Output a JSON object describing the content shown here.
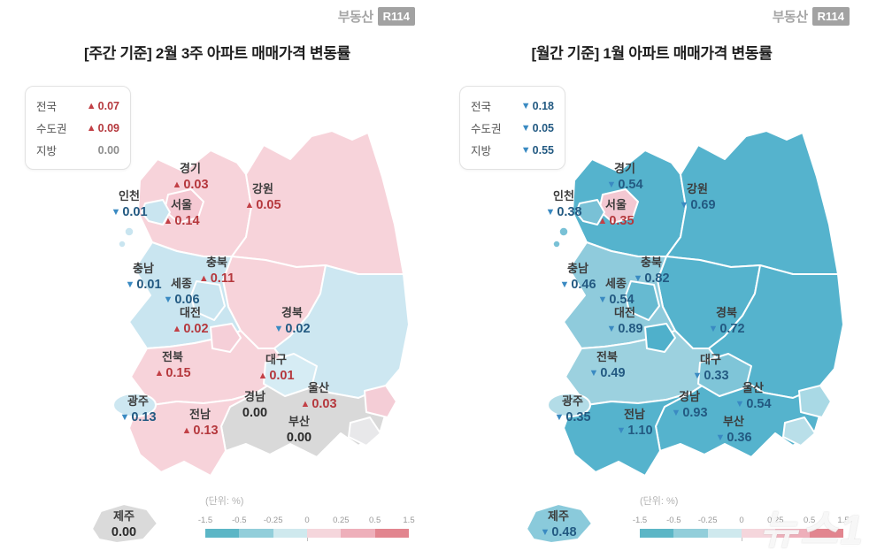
{
  "watermark": "뉴스1",
  "logo": {
    "text": "부동산",
    "badge": "R114"
  },
  "value_colors": {
    "up": "#b5383d",
    "up_arrow": "#c24046",
    "down": "#235a82",
    "down_arrow": "#3a8ac2",
    "neutral": "#2b2b2b",
    "muted": "#8d8d8d"
  },
  "legend": {
    "unit": "(단위: %)",
    "ticks": [
      "-1.5",
      "-0.5",
      "-0.25",
      "0",
      "0.25",
      "0.5",
      "1.5"
    ],
    "colors": [
      "#5cb6c6",
      "#92ceda",
      "#cfe9ee",
      "#f5d6dc",
      "#eeafba",
      "#e2858f"
    ]
  },
  "panels": [
    {
      "title": "[주간 기준] 2월 3주 아파트 매매가격 변동률",
      "summary": [
        {
          "label": "전국",
          "arrow": "up",
          "value": "0.07"
        },
        {
          "label": "수도권",
          "arrow": "up",
          "value": "0.09"
        },
        {
          "label": "지방",
          "arrow": "none",
          "value": "0.00"
        }
      ],
      "regions": [
        {
          "id": "gyeonggi",
          "name": "경기",
          "arrow": "up",
          "value": "0.03",
          "fill": "#f7d3da"
        },
        {
          "id": "gangwon",
          "name": "강원",
          "arrow": "up",
          "value": "0.05",
          "fill": "#f7d3da"
        },
        {
          "id": "chungbuk",
          "name": "충북",
          "arrow": "up",
          "value": "0.11",
          "fill": "#f7d3da"
        },
        {
          "id": "chungnam",
          "name": "충남",
          "arrow": "down",
          "value": "0.01",
          "fill": "#c9e5f0"
        },
        {
          "id": "gyeongbuk",
          "name": "경북",
          "arrow": "down",
          "value": "0.02",
          "fill": "#cde7f1"
        },
        {
          "id": "jeonbuk",
          "name": "전북",
          "arrow": "up",
          "value": "0.15",
          "fill": "#f7d3da"
        },
        {
          "id": "gyeongnam",
          "name": "경남",
          "arrow": "none",
          "value": "0.00",
          "fill": "#d9d9d9"
        },
        {
          "id": "jeonnam",
          "name": "전남",
          "arrow": "up",
          "value": "0.13",
          "fill": "#f7d3da"
        },
        {
          "id": "seoul",
          "name": "서울",
          "arrow": "up",
          "value": "0.14",
          "fill": "#f5c9d3"
        },
        {
          "id": "incheon",
          "name": "인천",
          "arrow": "down",
          "value": "0.01",
          "fill": "#c9e5f0"
        },
        {
          "id": "sejong",
          "name": "세종",
          "arrow": "down",
          "value": "0.06",
          "fill": "#c9e5f0"
        },
        {
          "id": "daejeon",
          "name": "대전",
          "arrow": "up",
          "value": "0.02",
          "fill": "#f5cfd8"
        },
        {
          "id": "daegu",
          "name": "대구",
          "arrow": "up",
          "value": "0.01",
          "fill": "#d6ecf4"
        },
        {
          "id": "ulsan",
          "name": "울산",
          "arrow": "up",
          "value": "0.03",
          "fill": "#f4cdd6"
        },
        {
          "id": "busan",
          "name": "부산",
          "arrow": "none",
          "value": "0.00",
          "fill": "#e8e8ea"
        },
        {
          "id": "gwangju",
          "name": "광주",
          "arrow": "down",
          "value": "0.13",
          "fill": "#cde7f1"
        },
        {
          "id": "jeju",
          "name": "제주",
          "arrow": "none",
          "value": "0.00",
          "fill": "#dadada"
        }
      ]
    },
    {
      "title": "[월간 기준] 1월 아파트 매매가격 변동률",
      "summary": [
        {
          "label": "전국",
          "arrow": "down",
          "value": "0.18"
        },
        {
          "label": "수도권",
          "arrow": "down",
          "value": "0.05"
        },
        {
          "label": "지방",
          "arrow": "down",
          "value": "0.55"
        }
      ],
      "regions": [
        {
          "id": "gyeonggi",
          "name": "경기",
          "arrow": "down",
          "value": "0.54",
          "fill": "#55b3cd"
        },
        {
          "id": "gangwon",
          "name": "강원",
          "arrow": "down",
          "value": "0.69",
          "fill": "#55b3cd"
        },
        {
          "id": "chungbuk",
          "name": "충북",
          "arrow": "down",
          "value": "0.82",
          "fill": "#55b3cd"
        },
        {
          "id": "chungnam",
          "name": "충남",
          "arrow": "down",
          "value": "0.46",
          "fill": "#8fcbdc"
        },
        {
          "id": "gyeongbuk",
          "name": "경북",
          "arrow": "down",
          "value": "0.72",
          "fill": "#55b3cd"
        },
        {
          "id": "jeonbuk",
          "name": "전북",
          "arrow": "down",
          "value": "0.49",
          "fill": "#9cd1df"
        },
        {
          "id": "gyeongnam",
          "name": "경남",
          "arrow": "down",
          "value": "0.93",
          "fill": "#55b3cd"
        },
        {
          "id": "jeonnam",
          "name": "전남",
          "arrow": "down",
          "value": "1.10",
          "fill": "#55b3cd"
        },
        {
          "id": "seoul",
          "name": "서울",
          "arrow": "up",
          "value": "0.35",
          "fill": "#f3c8d2"
        },
        {
          "id": "incheon",
          "name": "인천",
          "arrow": "down",
          "value": "0.38",
          "fill": "#79c1d6"
        },
        {
          "id": "sejong",
          "name": "세종",
          "arrow": "down",
          "value": "0.54",
          "fill": "#66bad1"
        },
        {
          "id": "daejeon",
          "name": "대전",
          "arrow": "down",
          "value": "0.89",
          "fill": "#4fb0cb"
        },
        {
          "id": "daegu",
          "name": "대구",
          "arrow": "down",
          "value": "0.33",
          "fill": "#7fc5d8"
        },
        {
          "id": "ulsan",
          "name": "울산",
          "arrow": "down",
          "value": "0.54",
          "fill": "#a9d9e5"
        },
        {
          "id": "busan",
          "name": "부산",
          "arrow": "down",
          "value": "0.36",
          "fill": "#b9dfe9"
        },
        {
          "id": "gwangju",
          "name": "광주",
          "arrow": "down",
          "value": "0.35",
          "fill": "#b3dce7"
        },
        {
          "id": "jeju",
          "name": "제주",
          "arrow": "down",
          "value": "0.48",
          "fill": "#8acadb"
        }
      ]
    }
  ]
}
